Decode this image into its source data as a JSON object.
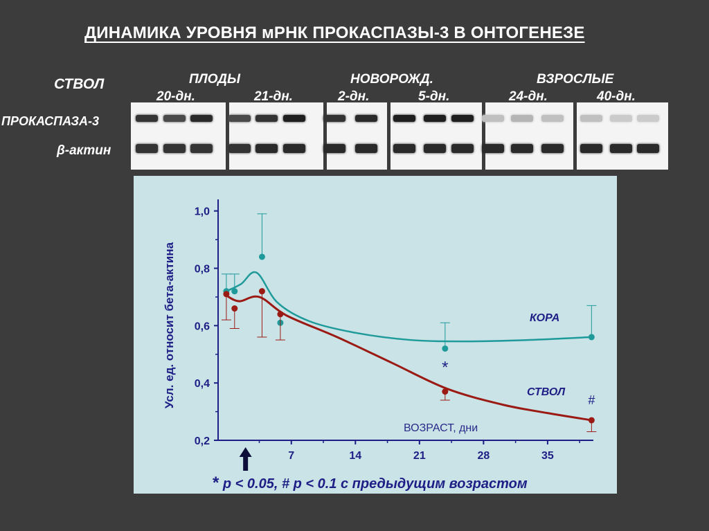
{
  "title": "ДИНАМИКА УРОВНЯ мРНК ПРОКАСПАЗЫ-3 В ОНТОГЕНЕЗЕ",
  "blot": {
    "tissue_label": "СТВОЛ",
    "groups": [
      "ПЛОДЫ",
      "НОВОРОЖД.",
      "ВЗРОСЛЫЕ"
    ],
    "ages": [
      "20-дн.",
      "21-дн.",
      "2-дн.",
      "5-дн.",
      "24-дн.",
      "40-дн."
    ],
    "rows": [
      "ПРОКАСПАЗА-3",
      "β-актин"
    ],
    "procaspase_intensity": [
      0.85,
      0.75,
      0.9,
      0.75,
      0.85,
      0.95,
      0.85,
      0.9,
      0.95,
      0.95,
      0.95,
      0.2,
      0.25,
      0.2,
      0.2,
      0.15,
      0.15
    ],
    "actin_intensity": [
      0.85,
      0.85,
      0.85,
      0.85,
      0.9,
      0.9,
      0.9,
      0.9,
      0.9,
      0.9,
      0.9,
      0.9,
      0.9,
      0.9,
      0.9,
      0.9,
      0.9
    ]
  },
  "chart_data": {
    "type": "line",
    "ylabel": "Усл. ед. относит бета-актина",
    "xlabel": "ВОЗРАСТ, дни",
    "x_ticks": [
      7,
      14,
      21,
      28,
      35
    ],
    "y_ticks": [
      "0,2",
      "0,4",
      "0,6",
      "0,8",
      "1,0"
    ],
    "y_tick_values": [
      0.2,
      0.4,
      0.6,
      0.8,
      1.0
    ],
    "xlim": [
      -1,
      40
    ],
    "ylim": [
      0.2,
      1.05
    ],
    "arrow_x": 2,
    "series": [
      {
        "name": "КОРА",
        "color": "#1f9a9a",
        "x": [
          -0.1,
          0.8,
          3.8,
          5.8,
          23.8,
          39.8
        ],
        "y": [
          0.72,
          0.72,
          0.84,
          0.61,
          0.52,
          0.56
        ],
        "err_up": [
          0.06,
          0.06,
          0.15,
          0,
          0.09,
          0.11
        ],
        "err_down": [
          0,
          0,
          0,
          0,
          0,
          0
        ]
      },
      {
        "name": "СТВОЛ",
        "color": "#9b1a14",
        "x": [
          -0.1,
          0.8,
          3.8,
          5.8,
          23.8,
          39.8
        ],
        "y": [
          0.71,
          0.66,
          0.72,
          0.64,
          0.37,
          0.27
        ],
        "err_up": [
          0,
          0,
          0,
          0,
          0,
          0
        ],
        "err_down": [
          0.09,
          0.07,
          0.16,
          0.09,
          0.03,
          0.04
        ]
      }
    ],
    "annotations": [
      {
        "text": "*",
        "x": 23.8,
        "y": 0.435,
        "color": "#1e1e86"
      },
      {
        "text": "#",
        "x": 39.8,
        "y": 0.325,
        "color": "#1e1e86"
      }
    ]
  },
  "footnote": {
    "star": "*",
    "text": " p < 0.05, # p < 0.1 с предыдущим возрастом"
  }
}
